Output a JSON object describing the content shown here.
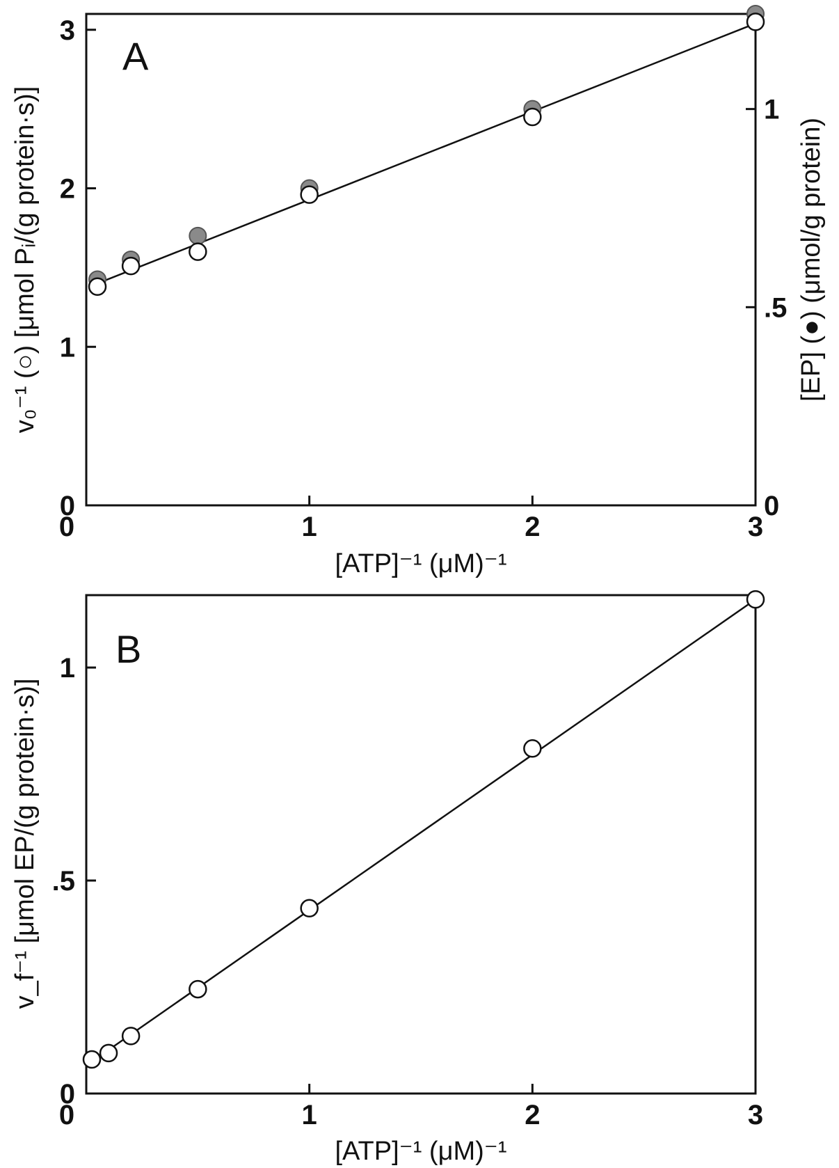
{
  "chart_data": [
    {
      "type": "scatter",
      "panel_label": "A",
      "xlabel": "[ATP]⁻¹ (μM)⁻¹",
      "ylabel": "v₀⁻¹ (○) [μmol Pᵢ/(g protein·s)]",
      "ylabel_right": "[EP] (●) (μmol/g protein)",
      "xlim": [
        0,
        3
      ],
      "ylim": [
        0,
        3.1
      ],
      "ylim_right": [
        0,
        1.24
      ],
      "x_ticks": [
        "0",
        "1",
        "2",
        "3"
      ],
      "y_ticks": [
        "0",
        "1",
        "2",
        "3"
      ],
      "y_ticks_right": [
        "0",
        ".5",
        "1"
      ],
      "series": [
        {
          "marker": "open-circle",
          "x": [
            0.05,
            0.2,
            0.5,
            1.0,
            2.0,
            3.0
          ],
          "y": [
            1.38,
            1.51,
            1.6,
            1.96,
            2.45,
            3.05
          ]
        },
        {
          "marker": "filled-circle",
          "axis": "right",
          "x": [
            0.05,
            0.2,
            0.5,
            1.0,
            2.0,
            3.0
          ],
          "y": [
            0.57,
            0.62,
            0.68,
            0.8,
            1.0,
            1.24
          ]
        }
      ],
      "fit_line": {
        "x": [
          0.05,
          3.0
        ],
        "y": [
          1.4,
          3.04
        ]
      }
    },
    {
      "type": "scatter",
      "panel_label": "B",
      "xlabel": "[ATP]⁻¹ (μM)⁻¹",
      "ylabel": "v_f⁻¹ [μmol EP/(g protein·s)]",
      "xlim": [
        0,
        3
      ],
      "ylim": [
        0,
        1.17
      ],
      "x_ticks": [
        "0",
        "1",
        "2",
        "3"
      ],
      "y_ticks": [
        "0",
        ".5",
        "1"
      ],
      "series": [
        {
          "marker": "open-circle",
          "x": [
            0.025,
            0.1,
            0.2,
            0.5,
            1.0,
            2.0,
            3.0
          ],
          "y": [
            0.08,
            0.095,
            0.135,
            0.245,
            0.435,
            0.81,
            1.16
          ]
        }
      ],
      "fit_line": {
        "x": [
          0.025,
          3.0
        ],
        "y": [
          0.075,
          1.16
        ]
      }
    }
  ]
}
